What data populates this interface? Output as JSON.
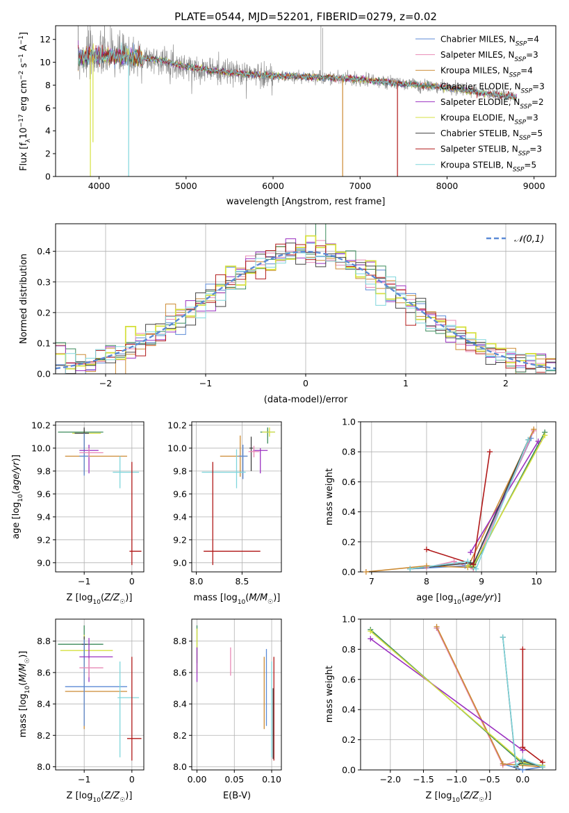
{
  "chart_data": [
    {
      "type": "line",
      "id": "spectrum",
      "title": "PLATE=0544, MJD=52201, FIBERID=0279, z=0.02",
      "xlabel": "wavelength [Angstrom, rest frame]",
      "ylabel": "Flux [f_λ10^-17 erg cm^-2 s^-1 A^-1]",
      "xlim": [
        3500,
        9250
      ],
      "ylim": [
        0,
        13.2
      ],
      "xticks": [
        4000,
        5000,
        6000,
        7000,
        8000,
        9000
      ],
      "yticks": [
        0,
        2,
        4,
        6,
        8,
        10,
        12
      ],
      "legend_position": "top-right",
      "continuum": [
        [
          3750,
          10.5
        ],
        [
          4000,
          10.6
        ],
        [
          4300,
          10.5
        ],
        [
          4700,
          10.2
        ],
        [
          5000,
          9.6
        ],
        [
          5500,
          9.1
        ],
        [
          6000,
          8.8
        ],
        [
          6500,
          8.7
        ],
        [
          7000,
          8.5
        ],
        [
          7500,
          8.1
        ],
        [
          8000,
          7.8
        ],
        [
          8500,
          7.2
        ],
        [
          8800,
          6.9
        ]
      ],
      "series": [
        {
          "name": "Chabrier MILES, N_SSP=4",
          "color": "#5b8ad6"
        },
        {
          "name": "Salpeter MILES, N_SSP=3",
          "color": "#e889b5"
        },
        {
          "name": "Kroupa MILES, N_SSP=4",
          "color": "#cc8a33"
        },
        {
          "name": "Chabrier ELODIE, N_SSP=3",
          "color": "#3a8a5a"
        },
        {
          "name": "Salpeter ELODIE, N_SSP=2",
          "color": "#9a2fc0"
        },
        {
          "name": "Kroupa ELODIE, N_SSP=3",
          "color": "#d6e040"
        },
        {
          "name": "Chabrier STELIB, N_SSP=5",
          "color": "#404040"
        },
        {
          "name": "Salpeter STELIB, N_SSP=3",
          "color": "#b01818"
        },
        {
          "name": "Kroupa STELIB, N_SSP=5",
          "color": "#7fd6dc"
        }
      ]
    },
    {
      "type": "histogram",
      "id": "residuals",
      "xlabel": "(data-model)/error",
      "ylabel": "Normed distribution",
      "xlim": [
        -2.5,
        2.5
      ],
      "ylim": [
        0,
        0.49
      ],
      "xticks": [
        -2,
        -1,
        0,
        1,
        2
      ],
      "yticks": [
        0.0,
        0.1,
        0.2,
        0.3,
        0.4
      ],
      "grid": true,
      "legend_position": "top-right",
      "reference": {
        "label": "𝒩(0,1)",
        "mu": 0,
        "sigma": 1,
        "color": "#5b8ad6",
        "style": "dashed"
      },
      "bin_width": 0.1,
      "series_colors": [
        "#5b8ad6",
        "#e889b5",
        "#cc8a33",
        "#3a8a5a",
        "#9a2fc0",
        "#d6e040",
        "#404040",
        "#b01818",
        "#7fd6dc"
      ]
    },
    {
      "type": "scatter",
      "id": "age-vs-Z",
      "xlabel": "Z [log10(Z/Z☉)]",
      "ylabel": "age  [log10(age/yr)]",
      "xlim": [
        -1.6,
        0.25
      ],
      "ylim": [
        8.92,
        10.23
      ],
      "xticks": [
        -1,
        0
      ],
      "yticks": [
        9.0,
        9.2,
        9.4,
        9.6,
        9.8,
        10.0,
        10.2
      ],
      "grid": true,
      "points": [
        {
          "x": -1.0,
          "y": 10.14,
          "xerr": [
            0.55,
            0.4
          ],
          "yerr": [
            0.12,
            0.02
          ],
          "color": "#3a8a5a"
        },
        {
          "x": -1.0,
          "y": 10.13,
          "xerr": [
            0.25,
            0.35
          ],
          "yerr": [
            0.1,
            0.02
          ],
          "color": "#d6e040"
        },
        {
          "x": -1.0,
          "y": 10.13,
          "xerr": [
            0.2,
            0.1
          ],
          "yerr": [
            0.2,
            0.05
          ],
          "color": "#404040"
        },
        {
          "x": -1.0,
          "y": 9.93,
          "xerr": [
            0.4,
            0.9
          ],
          "yerr": [
            0.16,
            0.2
          ],
          "color": "#cc8a33"
        },
        {
          "x": -1.0,
          "y": 9.93,
          "xerr": [
            0.1,
            0.1
          ],
          "yerr": [
            0.17,
            0.2
          ],
          "color": "#5b8ad6"
        },
        {
          "x": -0.9,
          "y": 9.98,
          "xerr": [
            0.2,
            0.2
          ],
          "yerr": [
            0.2,
            0.05
          ],
          "color": "#9a2fc0"
        },
        {
          "x": -0.9,
          "y": 9.96,
          "xerr": [
            0.2,
            0.3
          ],
          "yerr": [
            0.04,
            0.04
          ],
          "color": "#e889b5"
        },
        {
          "x": -0.25,
          "y": 9.79,
          "xerr": [
            0.15,
            0.4
          ],
          "yerr": [
            0.14,
            0.14
          ],
          "color": "#7fd6dc"
        },
        {
          "x": 0.0,
          "y": 9.1,
          "xerr": [
            0.05,
            0.2
          ],
          "yerr": [
            0.12,
            0.78
          ],
          "color": "#b01818"
        }
      ]
    },
    {
      "type": "scatter",
      "id": "age-vs-mass",
      "xlabel": "mass [log10(M/M☉)]",
      "ylabel": "",
      "xlim": [
        7.95,
        8.93
      ],
      "ylim": [
        8.92,
        10.23
      ],
      "xticks": [
        8.0,
        8.5
      ],
      "yticks": [
        9.0,
        9.2,
        9.4,
        9.6,
        9.8,
        10.0,
        10.2
      ],
      "grid": true,
      "points": [
        {
          "x": 8.78,
          "y": 10.14,
          "xerr": [
            0.08,
            0.08
          ],
          "yerr": [
            0.1,
            0.04
          ],
          "color": "#3a8a5a"
        },
        {
          "x": 8.8,
          "y": 10.14,
          "xerr": [
            0.08,
            0.06
          ],
          "yerr": [
            0.04,
            0.04
          ],
          "color": "#d6e040"
        },
        {
          "x": 8.6,
          "y": 10.0,
          "xerr": [
            0.02,
            0.02
          ],
          "yerr": [
            0.2,
            0.1
          ],
          "color": "#404040"
        },
        {
          "x": 8.48,
          "y": 9.93,
          "xerr": [
            0.22,
            0.08
          ],
          "yerr": [
            0.18,
            0.18
          ],
          "color": "#cc8a33"
        },
        {
          "x": 8.51,
          "y": 9.93,
          "xerr": [
            0.05,
            0.05
          ],
          "yerr": [
            0.2,
            0.1
          ],
          "color": "#5b8ad6"
        },
        {
          "x": 8.7,
          "y": 9.98,
          "xerr": [
            0.08,
            0.08
          ],
          "yerr": [
            0.2,
            0.02
          ],
          "color": "#9a2fc0"
        },
        {
          "x": 8.63,
          "y": 9.97,
          "xerr": [
            0.06,
            0.06
          ],
          "yerr": [
            0.05,
            0.05
          ],
          "color": "#e889b5"
        },
        {
          "x": 8.44,
          "y": 9.79,
          "xerr": [
            0.38,
            0.1
          ],
          "yerr": [
            0.14,
            0.2
          ],
          "color": "#7fd6dc"
        },
        {
          "x": 8.18,
          "y": 9.1,
          "xerr": [
            0.1,
            0.52
          ],
          "yerr": [
            0.12,
            0.78
          ],
          "color": "#b01818"
        }
      ]
    },
    {
      "type": "line",
      "id": "weight-vs-age",
      "xlabel": "age  [log10(age/yr)]",
      "ylabel": "mass weight",
      "xlim": [
        6.8,
        10.35
      ],
      "ylim": [
        0.0,
        1.0
      ],
      "xticks": [
        7,
        8,
        9,
        10
      ],
      "yticks": [
        0.0,
        0.2,
        0.4,
        0.6,
        0.8,
        1.0
      ],
      "grid": true,
      "series": [
        {
          "color": "#5b8ad6",
          "x": [
            7.7,
            8.7,
            8.85,
            9.9
          ],
          "y": [
            0.02,
            0.04,
            0.05,
            0.89
          ]
        },
        {
          "color": "#e889b5",
          "x": [
            8.0,
            8.5,
            8.85,
            9.95
          ],
          "y": [
            0.03,
            0.07,
            0.02,
            0.94
          ]
        },
        {
          "color": "#cc8a33",
          "x": [
            6.9,
            8.0,
            8.75,
            9.95
          ],
          "y": [
            0.0,
            0.04,
            0.03,
            0.95
          ]
        },
        {
          "color": "#3a8a5a",
          "x": [
            8.75,
            8.85,
            10.15
          ],
          "y": [
            0.04,
            0.03,
            0.93
          ]
        },
        {
          "color": "#9a2fc0",
          "x": [
            8.8,
            10.03
          ],
          "y": [
            0.13,
            0.87
          ]
        },
        {
          "color": "#d6e040",
          "x": [
            8.75,
            8.85,
            10.15
          ],
          "y": [
            0.04,
            0.04,
            0.91
          ]
        },
        {
          "color": "#404040",
          "x": [
            7.7,
            8.8,
            8.85,
            9.85
          ],
          "y": [
            0.02,
            0.06,
            0.05,
            0.88
          ]
        },
        {
          "color": "#b01818",
          "x": [
            8.0,
            8.85,
            9.15
          ],
          "y": [
            0.15,
            0.05,
            0.8
          ]
        },
        {
          "color": "#7fd6dc",
          "x": [
            7.7,
            8.75,
            8.9,
            9.85
          ],
          "y": [
            0.02,
            0.07,
            0.02,
            0.88
          ]
        }
      ]
    },
    {
      "type": "scatter",
      "id": "mass-vs-Z",
      "xlabel": "Z [log10(Z/Z☉)]",
      "ylabel": "mass [log10(M/M☉)]",
      "xlim": [
        -1.6,
        0.25
      ],
      "ylim": [
        7.98,
        8.94
      ],
      "xticks": [
        -1,
        0
      ],
      "yticks": [
        8.0,
        8.2,
        8.4,
        8.6,
        8.8
      ],
      "grid": true,
      "points": [
        {
          "x": -1.0,
          "y": 8.78,
          "xerr": [
            0.55,
            0.4
          ],
          "yerr": [
            0.1,
            0.12
          ],
          "color": "#3a8a5a"
        },
        {
          "x": -1.0,
          "y": 8.74,
          "xerr": [
            0.5,
            0.6
          ],
          "yerr": [
            0.1,
            0.1
          ],
          "color": "#d6e040"
        },
        {
          "x": -1.0,
          "y": 8.78,
          "xerr": [
            0.05,
            0.05
          ],
          "yerr": [
            0.1,
            0.05
          ],
          "color": "#404040"
        },
        {
          "x": -1.0,
          "y": 8.48,
          "xerr": [
            0.4,
            0.9
          ],
          "yerr": [
            0.24,
            0.2
          ],
          "color": "#cc8a33"
        },
        {
          "x": -1.0,
          "y": 8.51,
          "xerr": [
            0.4,
            0.9
          ],
          "yerr": [
            0.25,
            0.3
          ],
          "color": "#5b8ad6"
        },
        {
          "x": -0.9,
          "y": 8.7,
          "xerr": [
            0.2,
            0.5
          ],
          "yerr": [
            0.16,
            0.12
          ],
          "color": "#9a2fc0"
        },
        {
          "x": -0.9,
          "y": 8.63,
          "xerr": [
            0.2,
            0.3
          ],
          "yerr": [
            0.06,
            0.06
          ],
          "color": "#e889b5"
        },
        {
          "x": -0.25,
          "y": 8.44,
          "xerr": [
            0.05,
            0.4
          ],
          "yerr": [
            0.38,
            0.23
          ],
          "color": "#7fd6dc"
        },
        {
          "x": 0.0,
          "y": 8.18,
          "xerr": [
            0.1,
            0.2
          ],
          "yerr": [
            0.14,
            0.52
          ],
          "color": "#b01818"
        }
      ]
    },
    {
      "type": "scatter",
      "id": "mass-vs-EBV",
      "xlabel": "E(B-V)",
      "ylabel": "",
      "xlim": [
        -0.007,
        0.113
      ],
      "ylim": [
        7.98,
        8.94
      ],
      "xticks": [
        0.0,
        0.05,
        0.1
      ],
      "yticks": [
        8.0,
        8.2,
        8.4,
        8.6,
        8.8
      ],
      "grid": true,
      "points": [
        {
          "x": 0.0,
          "y": 8.78,
          "yerr": [
            0.12,
            0.12
          ],
          "color": "#3a8a5a"
        },
        {
          "x": 0.0,
          "y": 8.74,
          "yerr": [
            0.14,
            0.14
          ],
          "color": "#d6e040"
        },
        {
          "x": 0.0,
          "y": 8.66,
          "yerr": [
            0.12,
            0.1
          ],
          "color": "#9a2fc0"
        },
        {
          "x": 0.045,
          "y": 8.66,
          "yerr": [
            0.08,
            0.1
          ],
          "color": "#e889b5"
        },
        {
          "x": 0.09,
          "y": 8.48,
          "yerr": [
            0.24,
            0.22
          ],
          "color": "#cc8a33"
        },
        {
          "x": 0.093,
          "y": 8.51,
          "yerr": [
            0.25,
            0.24
          ],
          "color": "#5b8ad6"
        },
        {
          "x": 0.1,
          "y": 8.44,
          "yerr": [
            0.38,
            0.23
          ],
          "color": "#7fd6dc"
        },
        {
          "x": 0.103,
          "y": 8.18,
          "yerr": [
            0.14,
            0.52
          ],
          "color": "#b01818"
        },
        {
          "x": 0.102,
          "y": 8.3,
          "yerr": [
            0.25,
            0.2
          ],
          "color": "#404040"
        }
      ]
    },
    {
      "type": "line",
      "id": "weight-vs-Z",
      "xlabel": "Z [log10(Z/Z☉)]",
      "ylabel": "mass weight",
      "xlim": [
        -2.45,
        0.5
      ],
      "ylim": [
        0.0,
        1.0
      ],
      "xticks": [
        -2.0,
        -1.5,
        -1.0,
        -0.5,
        0.0
      ],
      "yticks": [
        0.0,
        0.2,
        0.4,
        0.6,
        0.8,
        1.0
      ],
      "grid": true,
      "series": [
        {
          "color": "#5b8ad6",
          "x": [
            -1.3,
            -0.3,
            0.0,
            0.3
          ],
          "y": [
            0.94,
            0.04,
            0.0,
            0.02
          ]
        },
        {
          "color": "#e889b5",
          "x": [
            -1.3,
            -0.3,
            0.0,
            0.3
          ],
          "y": [
            0.94,
            0.03,
            0.07,
            0.02
          ]
        },
        {
          "color": "#cc8a33",
          "x": [
            -1.3,
            -0.3,
            0.0,
            0.3
          ],
          "y": [
            0.95,
            0.04,
            0.03,
            0.02
          ]
        },
        {
          "color": "#3a8a5a",
          "x": [
            -2.3,
            0.0,
            0.3
          ],
          "y": [
            0.93,
            0.04,
            0.03
          ]
        },
        {
          "color": "#9a2fc0",
          "x": [
            -2.3,
            0.0
          ],
          "y": [
            0.87,
            0.13
          ]
        },
        {
          "color": "#d6e040",
          "x": [
            -2.3,
            0.0,
            0.3
          ],
          "y": [
            0.92,
            0.05,
            0.03
          ]
        },
        {
          "color": "#404040",
          "x": [
            -0.3,
            -0.1,
            0.0,
            0.3
          ],
          "y": [
            0.88,
            0.02,
            0.06,
            0.02
          ]
        },
        {
          "color": "#b01818",
          "x": [
            0.0,
            0.0,
            0.3
          ],
          "y": [
            0.8,
            0.15,
            0.05
          ]
        },
        {
          "color": "#7fd6dc",
          "x": [
            -0.3,
            -0.1,
            0.0,
            0.3
          ],
          "y": [
            0.88,
            0.03,
            0.07,
            0.02
          ]
        }
      ]
    }
  ]
}
